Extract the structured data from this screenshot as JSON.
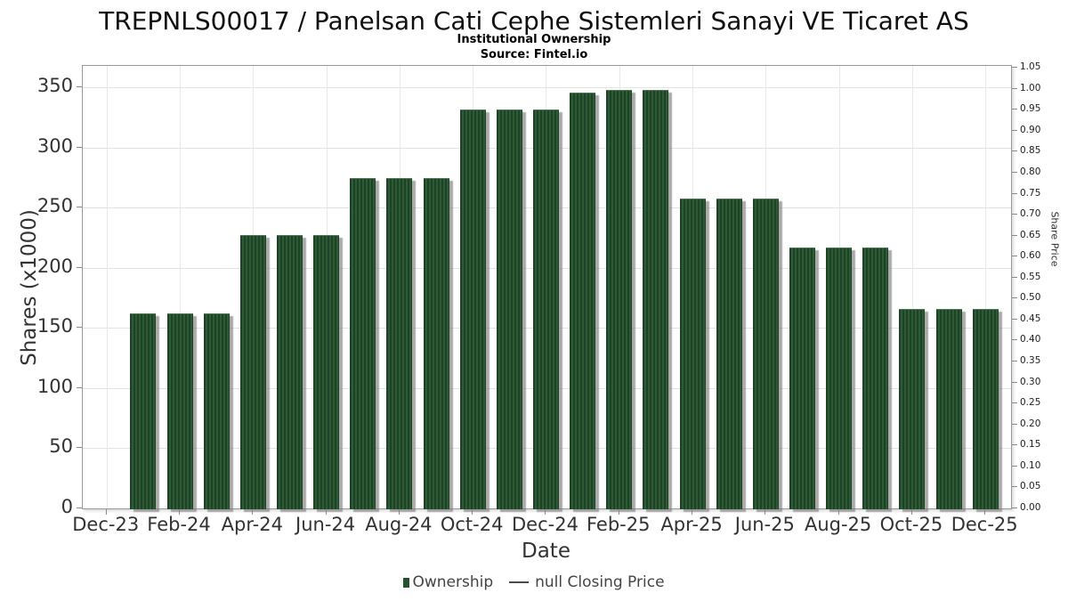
{
  "chart_data": {
    "type": "bar",
    "title": "TREPNLS00017 / Panelsan Cati Cephe Sistemleri Sanayi VE Ticaret AS",
    "subtitle": "Institutional Ownership",
    "source": "Source: Fintel.io",
    "xlabel": "Date",
    "grid": true,
    "legend_position": "bottom",
    "bar_color": "#24492c",
    "bar_stripe_color": "#2e5a36",
    "bar_shadow_color": "#9e9e9e",
    "left_axis": {
      "label": "Shares (x1000)",
      "ticks": [
        0,
        50,
        100,
        150,
        200,
        250,
        300,
        350
      ],
      "min": 0,
      "max": 368
    },
    "right_axis": {
      "label": "Share Price",
      "ticks": [
        "0.00",
        "0.05",
        "0.10",
        "0.15",
        "0.20",
        "0.25",
        "0.30",
        "0.35",
        "0.40",
        "0.45",
        "0.50",
        "0.55",
        "0.60",
        "0.65",
        "0.70",
        "0.75",
        "0.80",
        "0.85",
        "0.90",
        "0.95",
        "1.00",
        "1.05"
      ],
      "min": 0,
      "max": 1.0545
    },
    "x_axis": {
      "tick_labels": [
        "Dec-23",
        "Feb-24",
        "Apr-24",
        "Jun-24",
        "Aug-24",
        "Oct-24",
        "Dec-24",
        "Feb-25",
        "Apr-25",
        "Jun-25",
        "Aug-25",
        "Oct-25",
        "Dec-25"
      ],
      "tick_months": [
        0,
        2,
        4,
        6,
        8,
        10,
        12,
        14,
        16,
        18,
        20,
        22,
        24
      ],
      "month_min": -0.65,
      "month_max": 24.7
    },
    "series": [
      {
        "name": "Ownership",
        "type": "bar",
        "months": [
          "Jan-24",
          "Feb-24",
          "Mar-24",
          "Apr-24",
          "May-24",
          "Jun-24",
          "Jul-24",
          "Aug-24",
          "Sep-24",
          "Oct-24",
          "Nov-24",
          "Dec-24",
          "Jan-25",
          "Feb-25",
          "Mar-25",
          "Apr-25",
          "May-25",
          "Jun-25",
          "Jul-25",
          "Aug-25",
          "Sep-25",
          "Oct-25",
          "Nov-25",
          "Dec-25"
        ],
        "values": [
          162,
          162,
          162,
          227,
          227,
          227,
          275,
          275,
          275,
          332,
          332,
          332,
          346,
          348,
          348,
          258,
          258,
          258,
          217,
          217,
          217,
          166,
          166,
          166
        ]
      },
      {
        "name": "null Closing Price",
        "type": "line",
        "values": []
      }
    ],
    "legend": {
      "entries": [
        {
          "label": "Ownership",
          "marker": "square",
          "color": "#275231"
        },
        {
          "label": "null Closing Price",
          "marker": "dash",
          "color": "#4a4a4a"
        }
      ]
    }
  }
}
